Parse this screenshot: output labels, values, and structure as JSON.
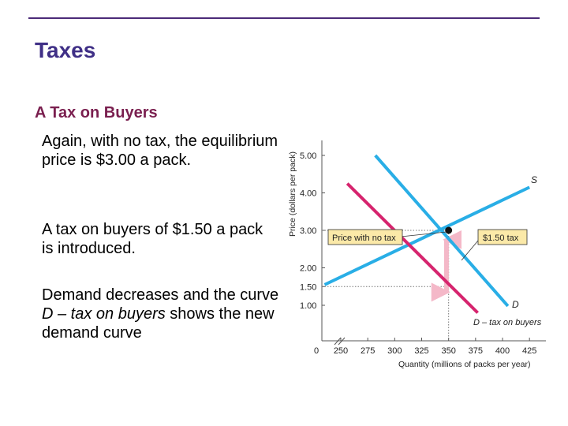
{
  "slide": {
    "title": "Taxes",
    "subheading": "A Tax on Buyers",
    "paragraph1": "Again, with no tax, the equilibrium price is $3.00 a pack.",
    "paragraph2": "A tax on buyers of $1.50 a pack is introduced.",
    "paragraph3_a": "Demand decreases and the curve ",
    "paragraph3_italic": "D – tax on buyers",
    "paragraph3_b": " shows the new demand curve"
  },
  "colors": {
    "title": "#3f2f86",
    "subheading": "#7a1f4f",
    "supply_demand_line": "#29aee6",
    "tax_demand_line": "#d6246e",
    "tax_arrow": "#f4b8c8"
  },
  "chart_data": {
    "type": "line",
    "xlabel": "Quantity (millions of packs per year)",
    "ylabel": "Price (dollars per pack)",
    "x_ticks": [
      "0",
      "250",
      "275",
      "300",
      "325",
      "350",
      "375",
      "400",
      "425"
    ],
    "y_ticks": [
      "1.00",
      "1.50",
      "2.00",
      "3.00",
      "4.00",
      "5.00"
    ],
    "xlim": [
      237,
      432
    ],
    "ylim": [
      0.5,
      5.3
    ],
    "series": [
      {
        "name": "S",
        "points": [
          [
            235,
            1.55
          ],
          [
            425,
            4.15
          ]
        ]
      },
      {
        "name": "D",
        "points": [
          [
            282,
            5.0
          ],
          [
            405,
            0.98
          ]
        ]
      },
      {
        "name": "D – tax on buyers",
        "points": [
          [
            256,
            4.25
          ],
          [
            377,
            0.8
          ]
        ]
      }
    ],
    "equilibrium": {
      "x": 350,
      "y": 3.0
    },
    "annotations": {
      "no_tax_label": "Price with no tax",
      "tax_label": "$1.50 tax",
      "tax_amount": 1.5
    },
    "guides": {
      "price_no_tax": 3.0,
      "price_tax_level": 1.5,
      "quantity_no_tax": 350
    }
  }
}
